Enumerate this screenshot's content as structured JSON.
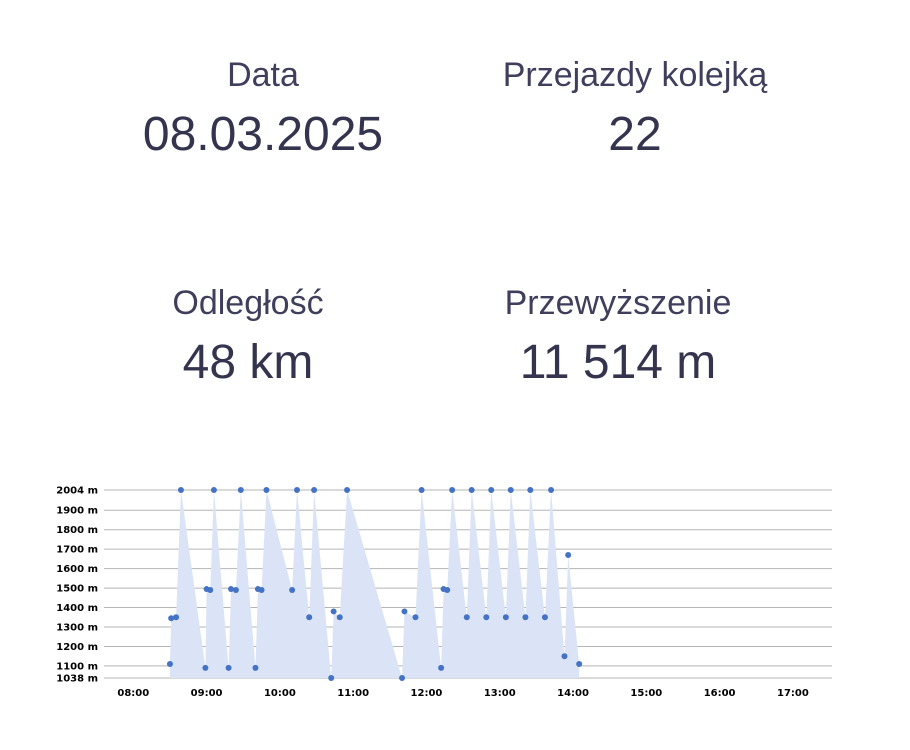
{
  "stats": {
    "date": {
      "label": "Data",
      "value": "08.03.2025"
    },
    "rides": {
      "label": "Przejazdy kolejką",
      "value": "22"
    },
    "distance": {
      "label": "Odległość",
      "value": "48 km"
    },
    "elevation": {
      "label": "Przewyższenie",
      "value": "11 514 m"
    }
  },
  "colors": {
    "point": "#4472c4",
    "area": "#dbe4f7",
    "grid": "#b5b5b5",
    "text": "#35344f"
  },
  "chart_data": {
    "type": "area",
    "y_ticks": [
      {
        "value": 1038,
        "label": "1038 m"
      },
      {
        "value": 1100,
        "label": "1100 m"
      },
      {
        "value": 1200,
        "label": "1200 m"
      },
      {
        "value": 1300,
        "label": "1300 m"
      },
      {
        "value": 1400,
        "label": "1400 m"
      },
      {
        "value": 1500,
        "label": "1500 m"
      },
      {
        "value": 1600,
        "label": "1600 m"
      },
      {
        "value": 1700,
        "label": "1700 m"
      },
      {
        "value": 1800,
        "label": "1800 m"
      },
      {
        "value": 1900,
        "label": "1900 m"
      },
      {
        "value": 2004,
        "label": "2004 m"
      }
    ],
    "x_ticks": [
      "08:00",
      "09:00",
      "10:00",
      "11:00",
      "12:00",
      "13:00",
      "14:00",
      "15:00",
      "16:00",
      "17:00"
    ],
    "ylim": [
      1038,
      2004
    ],
    "xlim": [
      "07:36",
      "17:32"
    ],
    "grid": true,
    "points": [
      [
        "08:30",
        1110
      ],
      [
        "08:31",
        1345
      ],
      [
        "08:35",
        1350
      ],
      [
        "08:39",
        2004
      ],
      [
        "08:59",
        1090
      ],
      [
        "09:00",
        1495
      ],
      [
        "09:03",
        1490
      ],
      [
        "09:06",
        2004
      ],
      [
        "09:18",
        1090
      ],
      [
        "09:20",
        1495
      ],
      [
        "09:24",
        1490
      ],
      [
        "09:28",
        2004
      ],
      [
        "09:40",
        1090
      ],
      [
        "09:42",
        1495
      ],
      [
        "09:45",
        1490
      ],
      [
        "09:49",
        2004
      ],
      [
        "10:10",
        1490
      ],
      [
        "10:14",
        2004
      ],
      [
        "10:24",
        1350
      ],
      [
        "10:28",
        2004
      ],
      [
        "10:42",
        1038
      ],
      [
        "10:44",
        1380
      ],
      [
        "10:49",
        1350
      ],
      [
        "10:55",
        2004
      ],
      [
        "11:40",
        1038
      ],
      [
        "11:42",
        1380
      ],
      [
        "11:51",
        1350
      ],
      [
        "11:56",
        2004
      ],
      [
        "12:12",
        1090
      ],
      [
        "12:14",
        1495
      ],
      [
        "12:17",
        1490
      ],
      [
        "12:21",
        2004
      ],
      [
        "12:33",
        1350
      ],
      [
        "12:37",
        2004
      ],
      [
        "12:49",
        1350
      ],
      [
        "12:53",
        2004
      ],
      [
        "13:05",
        1350
      ],
      [
        "13:09",
        2004
      ],
      [
        "13:21",
        1350
      ],
      [
        "13:25",
        2004
      ],
      [
        "13:37",
        1350
      ],
      [
        "13:42",
        2004
      ],
      [
        "13:53",
        1150
      ],
      [
        "13:56",
        1670
      ],
      [
        "14:05",
        1110
      ]
    ]
  }
}
